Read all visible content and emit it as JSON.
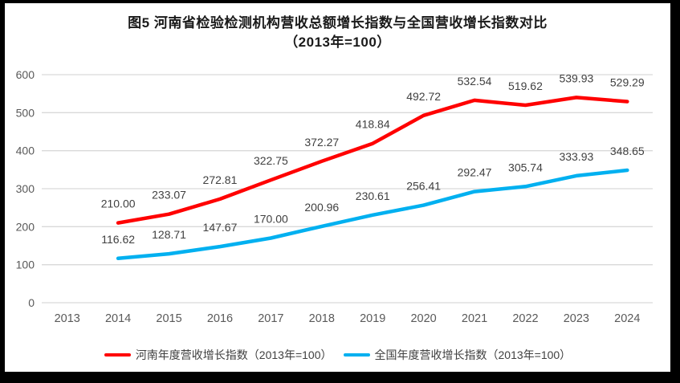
{
  "header": {
    "title_line1": "图5  河南省检验检测机构营收总额增长指数与全国营收增长指数对比",
    "title_line2": "（2013年=100）"
  },
  "colors": {
    "henan_line": "#FF0000",
    "national_line": "#00B0F0",
    "gridline": "#D9D9D9",
    "tick_label": "#595959",
    "data_label": "#404040",
    "frame_border": "#000000",
    "background": "#FFFFFF"
  },
  "chart_data": {
    "type": "line",
    "title": "图5 河南省检验检测机构营收总额增长指数与全国营收增长指数对比（2013年=100）",
    "x_categories": [
      "2013",
      "2014",
      "2015",
      "2016",
      "2017",
      "2018",
      "2019",
      "2020",
      "2021",
      "2022",
      "2023",
      "2024"
    ],
    "ylim": [
      0,
      600
    ],
    "yticks": [
      0,
      100,
      200,
      300,
      400,
      500,
      600
    ],
    "grid": true,
    "legend_position": "bottom",
    "series": [
      {
        "name": "河南年度营收增长指数（2013年=100）",
        "color": "#FF0000",
        "start_index": 1,
        "values": [
          210.0,
          233.07,
          272.81,
          322.75,
          372.27,
          418.84,
          492.72,
          532.54,
          519.62,
          539.93,
          529.29
        ],
        "point_labels": [
          "210.00",
          "233.07",
          "272.81",
          "322.75",
          "372.27",
          "418.84",
          "492.72",
          "532.54",
          "519.62",
          "539.93",
          "529.29"
        ]
      },
      {
        "name": "全国年度营收增长指数（2013年=100）",
        "color": "#00B0F0",
        "start_index": 1,
        "values": [
          116.62,
          128.71,
          147.67,
          170.0,
          200.96,
          230.61,
          256.41,
          292.47,
          305.74,
          333.93,
          348.65
        ],
        "point_labels": [
          "116.62",
          "128.71",
          "147.67",
          "170.00",
          "200.96",
          "230.61",
          "256.41",
          "292.47",
          "305.74",
          "333.93",
          "348.65"
        ]
      }
    ]
  }
}
